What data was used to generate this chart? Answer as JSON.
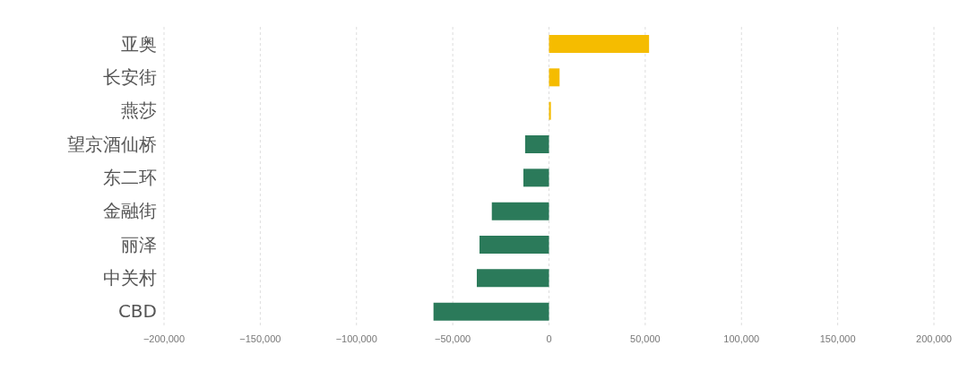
{
  "chart_data": {
    "type": "bar",
    "orientation": "horizontal",
    "categories": [
      "亚奥",
      "长安街",
      "燕莎",
      "望京酒仙桥",
      "东二环",
      "金融街",
      "丽泽",
      "中关村",
      "CBD"
    ],
    "values": [
      52000,
      5500,
      1000,
      -12400,
      -13300,
      -29700,
      -36100,
      -37500,
      -60000
    ],
    "colors": [
      "#f5bc00",
      "#f5bc00",
      "#f5bc00",
      "#2b7a5a",
      "#2b7a5a",
      "#2b7a5a",
      "#2b7a5a",
      "#2b7a5a",
      "#2b7a5a"
    ],
    "xlim": [
      -200000,
      200000
    ],
    "xticks": [
      {
        "value": -200000,
        "label": "−200,000"
      },
      {
        "value": -150000,
        "label": "−150,000"
      },
      {
        "value": -100000,
        "label": "−100,000"
      },
      {
        "value": -50000,
        "label": "−50,000"
      },
      {
        "value": 0,
        "label": "0"
      },
      {
        "value": 50000,
        "label": "50,000"
      },
      {
        "value": 100000,
        "label": "100,000"
      },
      {
        "value": 150000,
        "label": "150,000"
      },
      {
        "value": 200000,
        "label": "200,000"
      }
    ],
    "grid": "x"
  }
}
